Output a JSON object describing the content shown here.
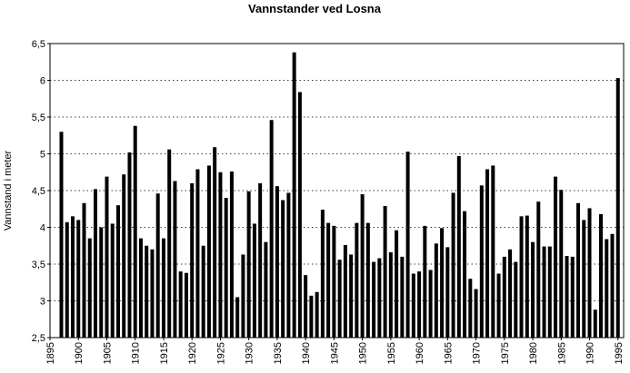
{
  "chart_data": {
    "type": "bar",
    "title": "Vannstander ved Losna",
    "y_label": "Vannstand i meter",
    "x": [
      1897,
      1898,
      1899,
      1900,
      1901,
      1902,
      1903,
      1904,
      1905,
      1906,
      1907,
      1908,
      1909,
      1910,
      1911,
      1912,
      1913,
      1914,
      1915,
      1916,
      1917,
      1918,
      1919,
      1920,
      1921,
      1922,
      1923,
      1924,
      1925,
      1926,
      1927,
      1928,
      1929,
      1930,
      1931,
      1932,
      1933,
      1934,
      1935,
      1936,
      1937,
      1938,
      1939,
      1940,
      1941,
      1942,
      1943,
      1944,
      1945,
      1946,
      1947,
      1948,
      1949,
      1950,
      1951,
      1952,
      1953,
      1954,
      1955,
      1956,
      1957,
      1958,
      1959,
      1960,
      1961,
      1962,
      1963,
      1964,
      1965,
      1966,
      1967,
      1968,
      1969,
      1970,
      1971,
      1972,
      1973,
      1974,
      1975,
      1976,
      1977,
      1978,
      1979,
      1980,
      1981,
      1982,
      1983,
      1984,
      1985,
      1986,
      1987,
      1988,
      1989,
      1990,
      1991,
      1992,
      1993,
      1994,
      1995
    ],
    "values": [
      5.3,
      4.07,
      4.15,
      4.1,
      4.33,
      3.85,
      4.52,
      4.0,
      4.69,
      4.05,
      4.3,
      4.72,
      5.02,
      5.38,
      3.85,
      3.75,
      3.7,
      4.46,
      3.85,
      5.06,
      4.63,
      3.4,
      3.38,
      4.6,
      4.79,
      3.75,
      4.84,
      5.09,
      4.75,
      4.4,
      4.76,
      3.05,
      3.63,
      4.49,
      4.05,
      4.6,
      3.8,
      5.46,
      4.56,
      4.37,
      4.47,
      6.38,
      5.84,
      3.35,
      3.07,
      3.12,
      4.24,
      4.06,
      4.02,
      3.56,
      3.76,
      3.63,
      4.06,
      4.45,
      4.06,
      3.53,
      3.58,
      4.29,
      3.66,
      3.96,
      3.6,
      5.03,
      3.37,
      3.4,
      4.02,
      3.42,
      3.78,
      3.99,
      3.73,
      4.47,
      4.97,
      4.22,
      3.3,
      3.16,
      4.57,
      4.79,
      4.84,
      3.37,
      3.6,
      3.7,
      3.53,
      4.15,
      4.16,
      3.8,
      4.35,
      3.74,
      3.74,
      4.69,
      4.51,
      3.61,
      3.6,
      4.33,
      4.1,
      4.26,
      2.88,
      4.18,
      3.84,
      3.91,
      6.03
    ],
    "color": "#000000",
    "xlim": [
      1895,
      1996
    ],
    "xticks": [
      1895,
      1900,
      1905,
      1910,
      1915,
      1920,
      1925,
      1930,
      1935,
      1940,
      1945,
      1950,
      1955,
      1960,
      1965,
      1970,
      1975,
      1980,
      1985,
      1990,
      1995
    ],
    "ylim": [
      2.5,
      6.5
    ],
    "yticks": [
      {
        "value": 2.5,
        "label": "2,5"
      },
      3,
      {
        "value": 3.5,
        "label": "3,5"
      },
      4,
      {
        "value": 4.5,
        "label": "4,5"
      },
      5,
      {
        "value": 5.5,
        "label": "5,5"
      },
      6,
      {
        "value": 6.5,
        "label": "6,5"
      }
    ],
    "grid": true
  }
}
